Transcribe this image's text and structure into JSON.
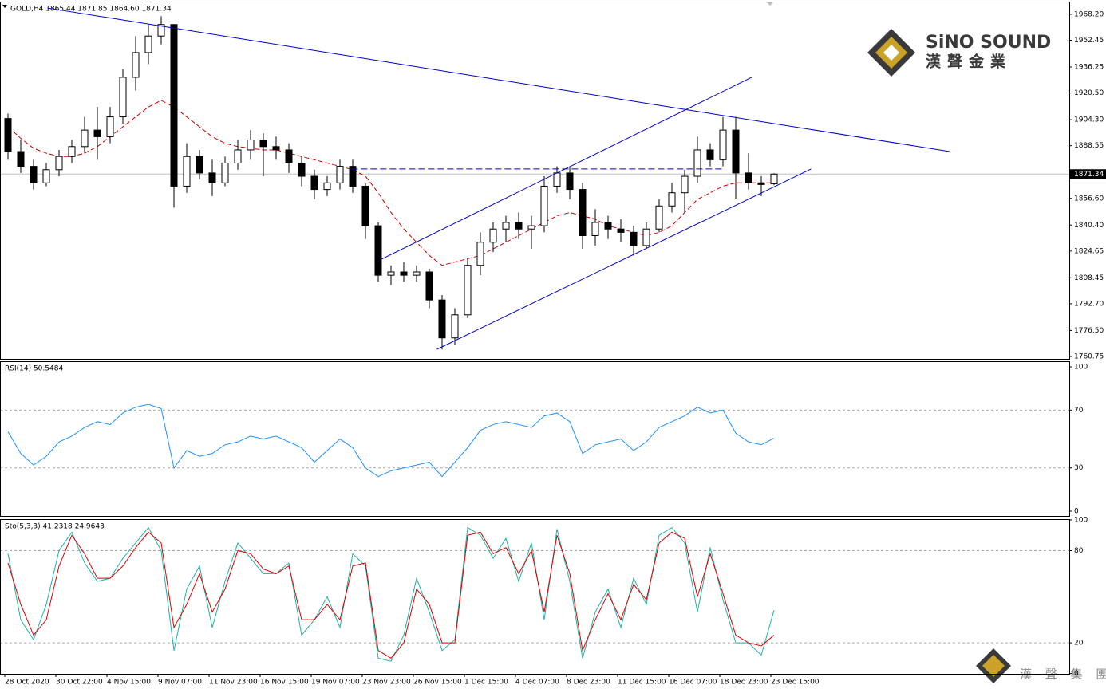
{
  "chart_data": [
    {
      "type": "candlestick",
      "label": "GOLD,H4  1865.44 1871.85 1864.60 1871.34",
      "categories": [
        "28 Oct 2020",
        null,
        null,
        null,
        "30 Oct 22:00",
        null,
        null,
        null,
        "4 Nov 15:00",
        null,
        null,
        null,
        "9 Nov 07:00",
        null,
        null,
        null,
        "11 Nov 23:00",
        null,
        null,
        null,
        "16 Nov 15:00",
        null,
        null,
        null,
        "19 Nov 07:00",
        null,
        null,
        null,
        "23 Nov 23:00",
        null,
        null,
        null,
        "26 Nov 15:00",
        null,
        null,
        null,
        "1 Dec 15:00",
        null,
        null,
        null,
        "4 Dec 07:00",
        null,
        null,
        null,
        "8 Dec 23:00",
        null,
        null,
        null,
        "11 Dec 15:00",
        null,
        null,
        null,
        "16 Dec 07:00",
        null,
        null,
        null,
        "18 Dec 23:00",
        null,
        null,
        null,
        "23 Dec 15:00"
      ],
      "open": [
        1905,
        1885,
        1876,
        1866,
        1874,
        1882,
        1888,
        1898,
        1894,
        1906,
        1930,
        1945,
        1955,
        1962,
        1864,
        1882,
        1872,
        1866,
        1878,
        1886,
        1892,
        1888,
        1886,
        1878,
        1870,
        1862,
        1866,
        1876,
        1864,
        1840,
        1810,
        1812,
        1810,
        1812,
        1795,
        1772,
        1786,
        1816,
        1830,
        1838,
        1842,
        1838,
        1840,
        1864,
        1872,
        1862,
        1834,
        1842,
        1838,
        1836,
        1828,
        1838,
        1852,
        1860,
        1870,
        1886,
        1880,
        1898,
        1872,
        1866,
        1865.44
      ],
      "high": [
        1908,
        1892,
        1880,
        1878,
        1886,
        1892,
        1906,
        1912,
        1912,
        1935,
        1955,
        1962,
        1967,
        1962,
        1890,
        1886,
        1880,
        1882,
        1892,
        1898,
        1896,
        1894,
        1890,
        1882,
        1874,
        1870,
        1880,
        1880,
        1866,
        1842,
        1816,
        1818,
        1816,
        1814,
        1798,
        1790,
        1820,
        1836,
        1842,
        1846,
        1848,
        1846,
        1870,
        1876,
        1876,
        1866,
        1850,
        1846,
        1844,
        1840,
        1842,
        1856,
        1866,
        1874,
        1894,
        1890,
        1906,
        1906,
        1884,
        1870,
        1871.85
      ],
      "low": [
        1880,
        1872,
        1862,
        1864,
        1870,
        1878,
        1884,
        1880,
        1890,
        1902,
        1922,
        1938,
        1950,
        1851,
        1860,
        1868,
        1858,
        1864,
        1874,
        1880,
        1870,
        1880,
        1872,
        1864,
        1856,
        1858,
        1862,
        1860,
        1832,
        1806,
        1804,
        1806,
        1806,
        1790,
        1765,
        1768,
        1784,
        1810,
        1824,
        1830,
        1832,
        1826,
        1836,
        1860,
        1856,
        1826,
        1828,
        1832,
        1830,
        1822,
        1826,
        1836,
        1848,
        1848,
        1866,
        1876,
        1876,
        1856,
        1862,
        1858,
        1864.6
      ],
      "close": [
        1885,
        1876,
        1866,
        1874,
        1882,
        1888,
        1898,
        1894,
        1906,
        1930,
        1945,
        1955,
        1962,
        1864,
        1882,
        1872,
        1866,
        1878,
        1886,
        1892,
        1888,
        1886,
        1878,
        1870,
        1862,
        1866,
        1876,
        1864,
        1840,
        1810,
        1812,
        1810,
        1812,
        1795,
        1772,
        1786,
        1816,
        1830,
        1838,
        1842,
        1838,
        1840,
        1864,
        1872,
        1862,
        1834,
        1842,
        1838,
        1836,
        1828,
        1838,
        1852,
        1860,
        1870,
        1886,
        1880,
        1898,
        1872,
        1866,
        1865,
        1871.34
      ],
      "up_color": "#ffffff",
      "down_color": "#000000",
      "wick_color": "#000000",
      "ma": {
        "color": "#cc0000",
        "values": [
          1900,
          1893,
          1887,
          1884,
          1882,
          1882,
          1884,
          1888,
          1894,
          1900,
          1906,
          1912,
          1916,
          1912,
          1906,
          1900,
          1894,
          1890,
          1888,
          1887,
          1886,
          1886,
          1884,
          1882,
          1880,
          1878,
          1876,
          1874,
          1870,
          1860,
          1848,
          1838,
          1830,
          1822,
          1816,
          1818,
          1820,
          1822,
          1826,
          1830,
          1834,
          1838,
          1842,
          1846,
          1848,
          1846,
          1844,
          1840,
          1838,
          1836,
          1834,
          1836,
          1840,
          1848,
          1856,
          1860,
          1864,
          1866,
          1866,
          1866,
          1866
        ]
      },
      "lines": [
        {
          "color": "#0000cc",
          "dashed": false,
          "x": [
            3.1,
            73.75
          ],
          "y": [
            1972,
            1885
          ]
        },
        {
          "color": "#0000cc",
          "dashed": false,
          "x": [
            29.25,
            58.25
          ],
          "y": [
            1819.7,
            1930
          ]
        },
        {
          "color": "#0000cc",
          "dashed": false,
          "x": [
            33.6,
            62.9
          ],
          "y": [
            1765.1,
            1874.4
          ]
        },
        {
          "color": "#0000cc",
          "dashed": true,
          "x": [
            26.9,
            55.9
          ],
          "y": [
            1874.4,
            1874.4
          ]
        }
      ],
      "last_price_color": "#c0c0c0",
      "ylim": [
        1759.3,
        1975.9
      ],
      "yticks": [
        {
          "value": 1968.2,
          "label": "1968.20"
        },
        1952.45,
        {
          "value": 1936.25,
          "label": "1936.25"
        },
        {
          "value": 1920.5,
          "label": "1920.50"
        },
        {
          "value": 1904.3,
          "label": "1904.30"
        },
        1888.55,
        {
          "value": 1856.6,
          "label": "1856.60"
        },
        {
          "value": 1840.4,
          "label": "1840.40"
        },
        1824.65,
        1808.45,
        {
          "value": 1792.7,
          "label": "1792.70"
        },
        {
          "value": 1776.5,
          "label": "1776.50"
        },
        1760.75
      ]
    },
    {
      "type": "line",
      "label": "RSI(14) 50.5484",
      "series": [
        {
          "color": "#1e90ff",
          "values": [
            55,
            40,
            32,
            38,
            48,
            52,
            58,
            62,
            60,
            68,
            72,
            74,
            71,
            30,
            42,
            38,
            40,
            46,
            48,
            52,
            50,
            52,
            48,
            44,
            34,
            42,
            50,
            44,
            30,
            24,
            28,
            30,
            32,
            34,
            24,
            34,
            44,
            56,
            60,
            62,
            60,
            58,
            66,
            68,
            62,
            40,
            46,
            48,
            50,
            42,
            48,
            58,
            62,
            66,
            72,
            68,
            70,
            54,
            48,
            46,
            50.5484
          ]
        }
      ],
      "ylim": [
        -3.3,
        103.9
      ],
      "yticks": [
        0,
        30,
        70,
        100
      ],
      "levels": [
        30,
        70
      ]
    },
    {
      "type": "line",
      "label": "Sto(5,3,3) 41.2318 24.9643",
      "series": [
        {
          "color": "#20b2aa",
          "values": [
            78,
            35,
            22,
            45,
            80,
            92,
            72,
            60,
            62,
            75,
            85,
            95,
            80,
            15,
            55,
            70,
            30,
            60,
            85,
            75,
            65,
            65,
            72,
            25,
            35,
            50,
            30,
            78,
            70,
            10,
            8,
            25,
            62,
            40,
            15,
            22,
            95,
            90,
            75,
            88,
            60,
            85,
            35,
            94,
            60,
            10,
            40,
            55,
            30,
            62,
            45,
            90,
            95,
            85,
            40,
            82,
            48,
            20,
            20,
            12,
            41.2318
          ]
        },
        {
          "color": "#dd0000",
          "values": [
            72,
            45,
            25,
            35,
            70,
            90,
            78,
            62,
            62,
            70,
            82,
            92,
            85,
            30,
            45,
            65,
            40,
            55,
            80,
            78,
            68,
            65,
            70,
            35,
            35,
            45,
            35,
            70,
            72,
            15,
            10,
            20,
            55,
            45,
            20,
            20,
            90,
            92,
            78,
            82,
            65,
            80,
            40,
            90,
            65,
            15,
            35,
            52,
            35,
            58,
            48,
            85,
            92,
            88,
            50,
            78,
            52,
            25,
            20,
            18,
            24.9643
          ]
        }
      ],
      "ylim": [
        -0.2,
        100.5
      ],
      "yticks": [
        0,
        20,
        80,
        100
      ],
      "levels": [
        20,
        80
      ]
    }
  ],
  "logo": {
    "name": "SiNO SOUND",
    "chinese": "漢聲金業",
    "footer": "漢 聲 集 團"
  }
}
